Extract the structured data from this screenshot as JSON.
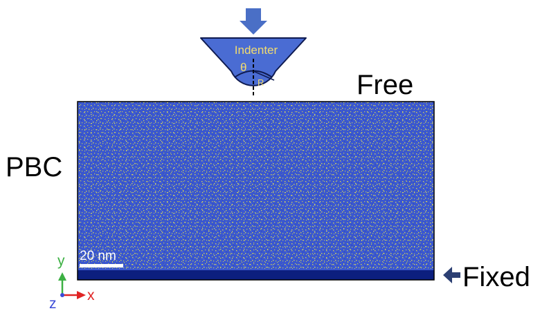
{
  "labels": {
    "indenter": "Indenter",
    "theta": "θ",
    "radius": "R",
    "top_boundary": "Free",
    "side_boundary": "PBC",
    "bottom_boundary": "Fixed",
    "scale_bar": "20 nm"
  },
  "axes": {
    "x": "x",
    "y": "y",
    "z": "z"
  },
  "colors": {
    "sample_blue": "#3a57cf",
    "sample_speckle": "#d4d25a",
    "fixed_layer": "#0c1f7e",
    "indenter_fill": "#4a6cd3",
    "indenter_stroke": "#0e1a50",
    "arrow_blue": "#4a6fc6",
    "fixed_arrow": "#2c3f73",
    "axis_x": "#e02424",
    "axis_y": "#3cb043",
    "axis_z": "#3b4bd8"
  },
  "icons": {
    "load_arrow": "down-arrow-icon",
    "fixed_arrow": "left-arrow-icon"
  }
}
